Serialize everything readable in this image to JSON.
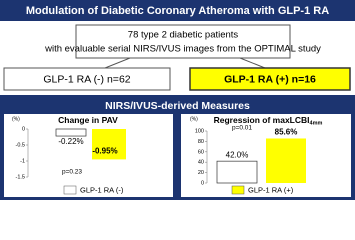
{
  "header": {
    "title": "Modulation of Diabetic Coronary Atheroma with GLP-1 RA"
  },
  "population": {
    "lines": [
      "78 type 2 diabetic patients",
      "with evaluable serial NIRS/IVUS images from the OPTIMAL study"
    ]
  },
  "groups": [
    "GLP-1 RA (-) n=62",
    "GLP-1 RA (+) n=16"
  ],
  "section_title": "NIRS/IVUS-derived Measures",
  "legend": {
    "labels": [
      "GLP-1 RA (-)",
      "GLP-1 RA (+)"
    ],
    "colors": [
      "#ffffff",
      "#ffff00"
    ]
  },
  "chart_data": [
    {
      "type": "bar",
      "title": "Change in PAV",
      "y_label": "(%)",
      "values": [
        -0.22,
        -0.95
      ],
      "value_labels": [
        "-0.22%",
        "-0.95%"
      ],
      "ylim": [
        -1.5,
        0
      ],
      "yticks": [
        0,
        -0.5,
        -1,
        -1.5
      ],
      "annotation": "p=0.23"
    },
    {
      "type": "bar",
      "title": "Regression of maxLCBI",
      "title_subscript": "4mm",
      "y_label": "(%)",
      "values": [
        42.0,
        85.6
      ],
      "value_labels": [
        "42.0%",
        "85.6%"
      ],
      "ylim": [
        0,
        100
      ],
      "yticks": [
        0,
        20,
        40,
        60,
        80,
        100
      ],
      "annotation": "p=0.01"
    }
  ]
}
